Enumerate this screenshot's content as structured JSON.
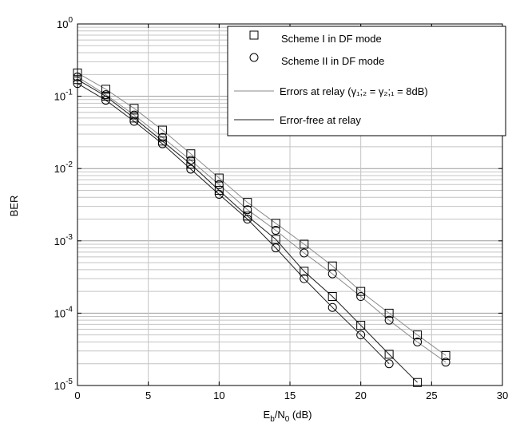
{
  "chart_data": {
    "type": "line",
    "xlabel": "E_b/N_0 (dB)",
    "xlabel_parts": {
      "main": "E",
      "sub1": "b",
      "mid": "/N",
      "sub2": "0",
      "tail": " (dB)"
    },
    "ylabel": "BER",
    "xlim": [
      0,
      30
    ],
    "ylim": [
      1e-05,
      1
    ],
    "yscale": "log",
    "grid": true,
    "legend_position": "top-right",
    "x_ticks": [
      "0",
      "5",
      "10",
      "15",
      "20",
      "25",
      "30"
    ],
    "y_ticks": [
      {
        "base": "10",
        "exp": "0"
      },
      {
        "base": "10",
        "exp": "-1"
      },
      {
        "base": "10",
        "exp": "-2"
      },
      {
        "base": "10",
        "exp": "-3"
      },
      {
        "base": "10",
        "exp": "-4"
      },
      {
        "base": "10",
        "exp": "-5"
      }
    ],
    "legend": [
      {
        "label": "Scheme I in DF mode",
        "kind": "square-marker"
      },
      {
        "label": "Scheme II in DF mode",
        "kind": "circle-marker"
      },
      {
        "label": "Errors at relay (γ₁;₂ = γ₂;₁ = 8dB)",
        "kind": "line-light"
      },
      {
        "label": "Error-free at relay",
        "kind": "line-dark"
      }
    ],
    "series": [
      {
        "marker": "square",
        "line": "light",
        "x": [
          0,
          2,
          4,
          6,
          8,
          10,
          12,
          14,
          16,
          18,
          20,
          22,
          24,
          26
        ],
        "y": [
          0.21,
          0.125,
          0.068,
          0.034,
          0.016,
          0.0074,
          0.0034,
          0.00175,
          0.0009,
          0.00045,
          0.0002,
          0.0001,
          5e-05,
          2.6e-05
        ]
      },
      {
        "marker": "circle",
        "line": "light",
        "x": [
          0,
          2,
          4,
          6,
          8,
          10,
          12,
          14,
          16,
          18,
          20,
          22,
          24,
          26
        ],
        "y": [
          0.185,
          0.105,
          0.055,
          0.027,
          0.013,
          0.006,
          0.0027,
          0.0014,
          0.00068,
          0.00035,
          0.00017,
          8e-05,
          4e-05,
          2.1e-05
        ]
      },
      {
        "marker": "square",
        "line": "dark",
        "x": [
          0,
          2,
          4,
          6,
          8,
          10,
          12,
          14,
          16,
          18,
          20,
          22,
          24
        ],
        "y": [
          0.17,
          0.1,
          0.05,
          0.024,
          0.0115,
          0.005,
          0.0022,
          0.00105,
          0.00038,
          0.00017,
          6.8e-05,
          2.7e-05,
          1.1e-05
        ]
      },
      {
        "marker": "circle",
        "line": "dark",
        "x": [
          0,
          2,
          4,
          6,
          8,
          10,
          12,
          14,
          16,
          18,
          20,
          22
        ],
        "y": [
          0.15,
          0.088,
          0.045,
          0.022,
          0.0098,
          0.0044,
          0.002,
          0.0008,
          0.0003,
          0.00012,
          5e-05,
          2e-05
        ]
      }
    ]
  }
}
